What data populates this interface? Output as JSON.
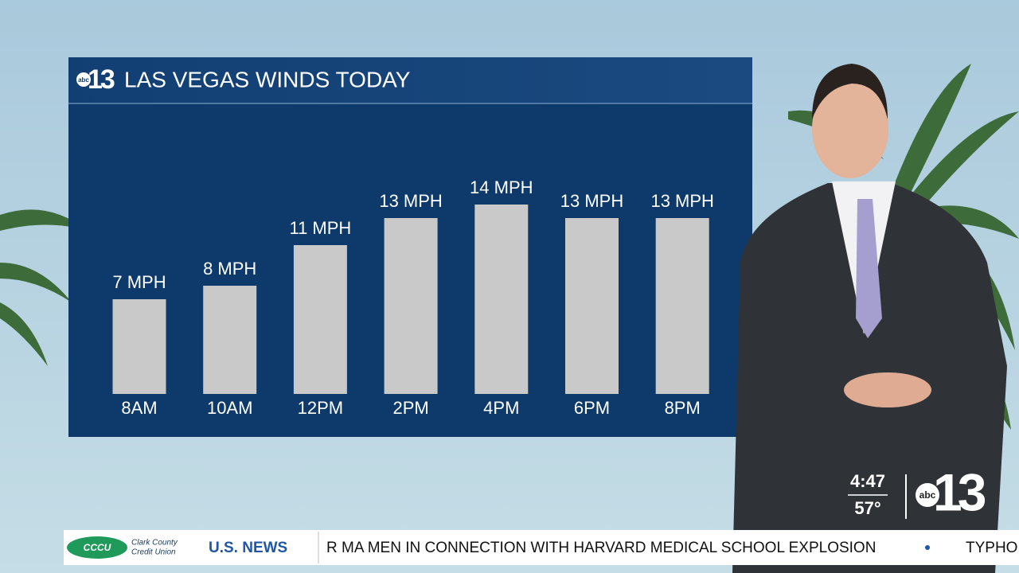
{
  "chart_data": {
    "type": "bar",
    "title": "LAS VEGAS WINDS TODAY",
    "categories": [
      "8AM",
      "10AM",
      "12PM",
      "2PM",
      "4PM",
      "6PM",
      "8PM"
    ],
    "values": [
      7,
      8,
      11,
      13,
      14,
      13,
      13
    ],
    "value_labels": [
      "7 MPH",
      "8 MPH",
      "11 MPH",
      "13 MPH",
      "14 MPH",
      "13 MPH",
      "13 MPH"
    ],
    "color": "#c9c9c9"
  },
  "logo": {
    "network": "abc",
    "channel": "13"
  },
  "bug": {
    "time": "4:47",
    "temperature": "57°"
  },
  "ticker": {
    "sponsor": [
      "Clark County",
      "Credit Union"
    ],
    "sponsor_logo": "CCCU",
    "section": "U.S. NEWS",
    "headline": "R MA MEN IN CONNECTION WITH HARVARD MEDICAL SCHOOL EXPLOSION",
    "next": "TYPHO"
  }
}
